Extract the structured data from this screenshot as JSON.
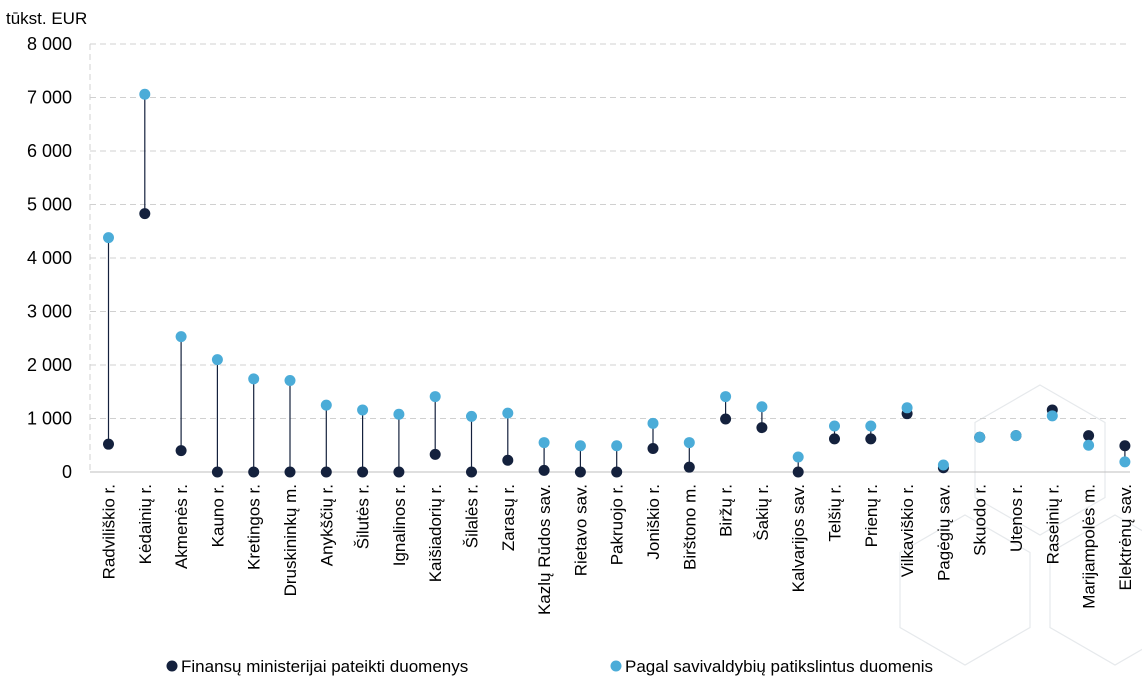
{
  "chart_data": {
    "type": "dot-range",
    "unit_label": "tūkst. EUR",
    "y_ticks": [
      "0",
      "1 000",
      "2 000",
      "3 000",
      "4 000",
      "5 000",
      "6 000",
      "7 000",
      "8 000"
    ],
    "ylim": [
      0,
      8000
    ],
    "grid": true,
    "legend_position": "bottom",
    "categories": [
      "Radviliškio r.",
      "Kėdainių r.",
      "Akmenės r.",
      "Kauno r.",
      "Kretingos r.",
      "Druskininkų m.",
      "Anykščių r.",
      "Šilutės r.",
      "Ignalinos r.",
      "Kaišiadorių r.",
      "Šilalės r.",
      "Zarasų r.",
      "Kazlų Rūdos sav.",
      "Rietavo sav.",
      "Pakruojo r.",
      "Joniškio r.",
      "Birštono m.",
      "Biržų r.",
      "Šakių r.",
      "Kalvarijos sav.",
      "Telšių r.",
      "Prienų r.",
      "Vilkaviškio r.",
      "Pagėgių sav.",
      "Skuodo r.",
      "Utenos r.",
      "Raseinių r.",
      "Marijampolės m.",
      "Elektrėnų sav."
    ],
    "series": [
      {
        "name": "Finansų ministerijai pateikti duomenys",
        "color": "#14213d",
        "values": [
          520,
          4830,
          400,
          0,
          0,
          0,
          0,
          0,
          0,
          330,
          0,
          220,
          30,
          0,
          0,
          440,
          90,
          990,
          830,
          0,
          620,
          620,
          1090,
          80,
          650,
          680,
          1160,
          680,
          490
        ]
      },
      {
        "name": "Pagal savivaldybių patikslintus duomenis",
        "color": "#4bacd8",
        "values": [
          4380,
          7060,
          2530,
          2100,
          1740,
          1710,
          1250,
          1160,
          1080,
          1410,
          1040,
          1100,
          550,
          490,
          490,
          910,
          550,
          1410,
          1220,
          280,
          860,
          860,
          1200,
          130,
          650,
          680,
          1050,
          500,
          190
        ]
      }
    ]
  }
}
